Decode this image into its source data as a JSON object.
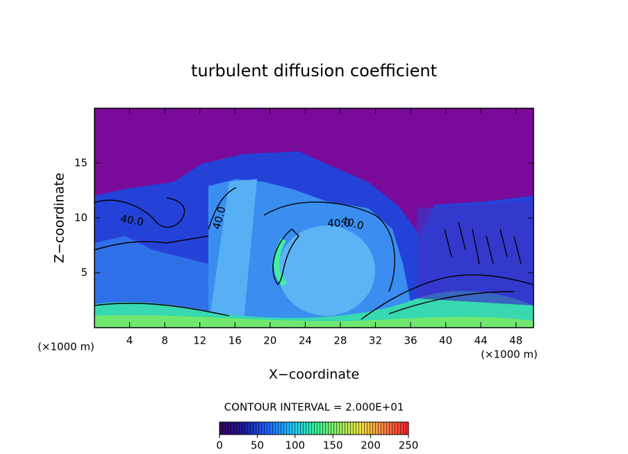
{
  "chart_data": {
    "type": "contour",
    "title": "turbulent diffusion coefficient",
    "x_label": "X−coordinate",
    "y_label": "Z−coordinate",
    "x_unit": "(×1000 m)",
    "x_unit_right": "(×1000 m)",
    "xlim": [
      0,
      50
    ],
    "xticks": [
      4,
      8,
      12,
      16,
      20,
      24,
      28,
      32,
      36,
      40,
      44,
      48
    ],
    "ylim": [
      0,
      20
    ],
    "yticks": [
      5,
      10,
      15
    ],
    "contour_note": "CONTOUR INTERVAL = 2.000E+01",
    "contour_labels": [
      {
        "value": 40,
        "label": "40.0"
      },
      {
        "value": 40,
        "label": "40.0"
      },
      {
        "value": 40,
        "label": "40.0"
      },
      {
        "value": 40,
        "label": "40.0"
      }
    ],
    "colorbar": {
      "lim": [
        0,
        250
      ],
      "ticks": [
        0,
        50,
        100,
        150,
        200,
        250
      ],
      "colors": [
        "#3a0060",
        "#1a1aa0",
        "#2060ff",
        "#20c0ff",
        "#30f0a0",
        "#90f060",
        "#f0e040",
        "#ff8040",
        "#ff2030"
      ]
    }
  }
}
